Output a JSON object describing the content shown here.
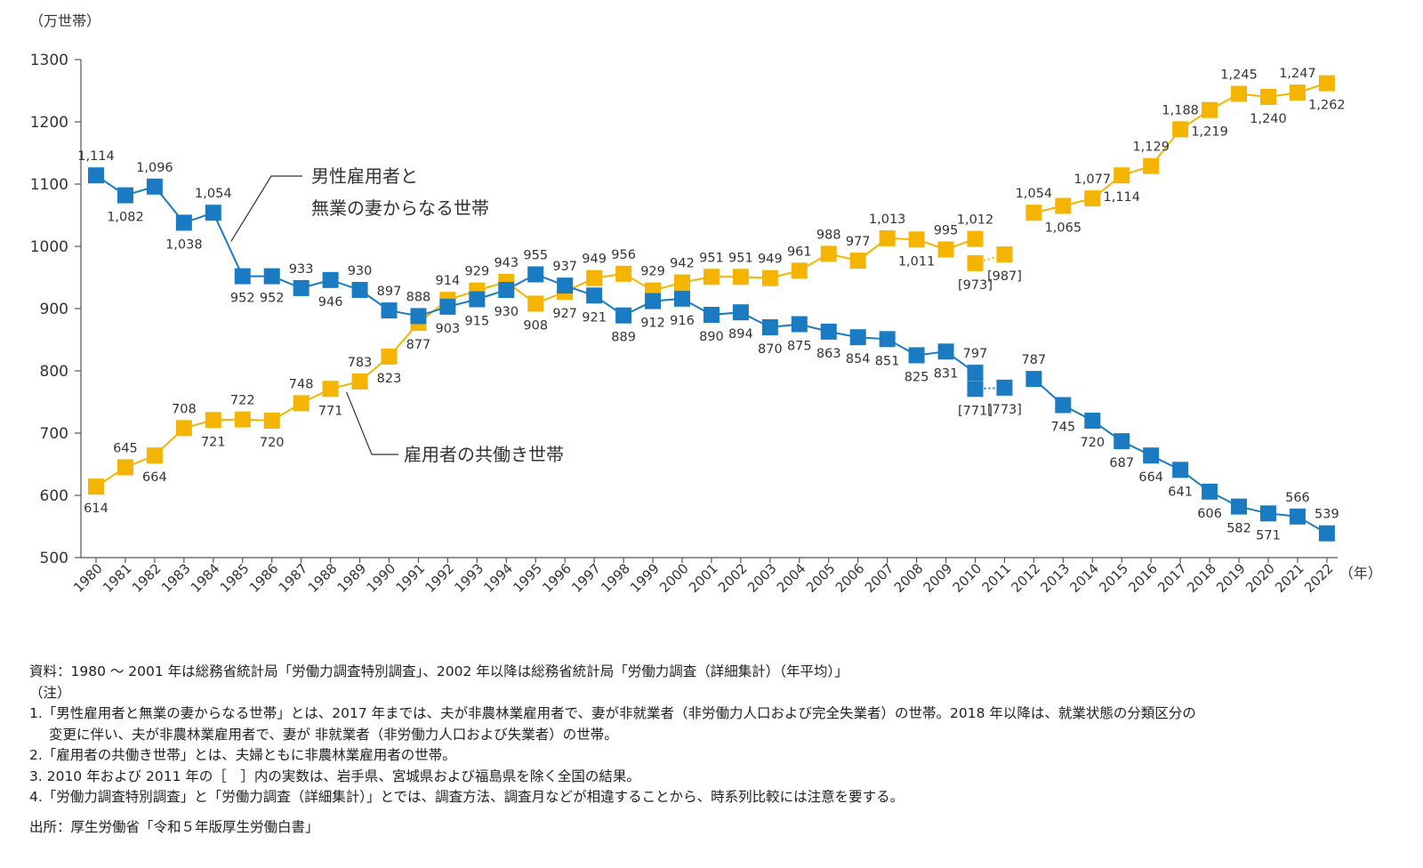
{
  "chart_data": {
    "type": "line",
    "y_unit_label": "（万世帯）",
    "x_unit_label": "（年）",
    "ylim": [
      500,
      1300
    ],
    "yticks": [
      "500",
      "600",
      "700",
      "800",
      "900",
      "1000",
      "1100",
      "1200",
      "1300"
    ],
    "categories": [
      "1980",
      "1981",
      "1982",
      "1983",
      "1984",
      "1985",
      "1986",
      "1987",
      "1988",
      "1989",
      "1990",
      "1991",
      "1992",
      "1993",
      "1994",
      "1995",
      "1996",
      "1997",
      "1998",
      "1999",
      "2000",
      "2001",
      "2002",
      "2003",
      "2004",
      "2005",
      "2006",
      "2007",
      "2008",
      "2009",
      "2010",
      "2011",
      "2012",
      "2013",
      "2014",
      "2015",
      "2016",
      "2017",
      "2018",
      "2019",
      "2020",
      "2021",
      "2022"
    ],
    "series": [
      {
        "name": "男性雇用者と無業の妻からなる世帯",
        "label_lines": [
          "男性雇用者と",
          "無業の妻からなる世帯"
        ],
        "color": "#1a7ac2",
        "values": [
          1114,
          1082,
          1096,
          1038,
          1054,
          952,
          952,
          933,
          946,
          930,
          897,
          888,
          903,
          915,
          930,
          955,
          937,
          921,
          889,
          912,
          916,
          890,
          894,
          870,
          875,
          863,
          854,
          851,
          825,
          831,
          797,
          null,
          787,
          745,
          720,
          687,
          664,
          641,
          606,
          582,
          571,
          566,
          539
        ],
        "labels": [
          "1,114",
          "1,082",
          "1,096",
          "1,038",
          "1,054",
          "952",
          "952",
          "933",
          "946",
          "930",
          "897",
          "888",
          "903",
          "915",
          "930",
          "955",
          "937",
          "921",
          "889",
          "912",
          "916",
          "890",
          "894",
          "870",
          "875",
          "863",
          "854",
          "851",
          "825",
          "831",
          "797",
          "",
          "787",
          "745",
          "720",
          "687",
          "664",
          "641",
          "606",
          "582",
          "571",
          "566",
          "539"
        ],
        "bracket_values": [
          {
            "category": "2010",
            "value": 771,
            "label": "[771]"
          },
          {
            "category": "2011",
            "value": 773,
            "label": "[773]"
          }
        ]
      },
      {
        "name": "雇用者の共働き世帯",
        "label_lines": [
          "雇用者の共働き世帯"
        ],
        "color": "#f5b400",
        "values": [
          614,
          645,
          664,
          708,
          721,
          722,
          720,
          748,
          771,
          783,
          823,
          877,
          914,
          929,
          943,
          908,
          927,
          949,
          956,
          929,
          942,
          951,
          951,
          949,
          961,
          988,
          977,
          1013,
          1011,
          995,
          1012,
          null,
          1054,
          1065,
          1077,
          1114,
          1129,
          1188,
          1219,
          1245,
          1240,
          1247,
          1262
        ],
        "labels": [
          "614",
          "645",
          "664",
          "708",
          "721",
          "722",
          "720",
          "748",
          "771",
          "783",
          "823",
          "877",
          "914",
          "929",
          "943",
          "908",
          "927",
          "949",
          "956",
          "929",
          "942",
          "951",
          "951",
          "949",
          "961",
          "988",
          "977",
          "1,013",
          "1,011",
          "995",
          "1,012",
          "",
          "1,054",
          "1,065",
          "1,077",
          "1,114",
          "1,129",
          "1,188",
          "1,219",
          "1,245",
          "1,240",
          "1,247",
          "1,262"
        ],
        "bracket_values": [
          {
            "category": "2010",
            "value": 973,
            "label": "[973]"
          },
          {
            "category": "2011",
            "value": 987,
            "label": "[987]"
          }
        ]
      }
    ]
  },
  "notes": {
    "source_line": "資料：1980 ～ 2001 年は総務省統計局「労働力調査特別調査」、2002 年以降は総務省統計局「労働力調査（詳細集計）（年平均）」",
    "note_heading": "（注）",
    "note1a": "1.「男性雇用者と無業の妻からなる世帯」とは、2017 年までは、夫が非農林業雇用者で、妻が非就業者（非労働力人口および完全失業者）の世帯。2018 年以降は、就業状態の分類区分の",
    "note1b": "変更に伴い、夫が非農林業雇用者で、妻が 非就業者（非労働力人口および失業者）の世帯。",
    "note2": "2.「雇用者の共働き世帯」とは、夫婦ともに非農林業雇用者の世帯。",
    "note3": "3. 2010 年および 2011 年の［　］内の実数は、岩手県、宮城県および福島県を除く全国の結果。",
    "note4": "4.「労働力調査特別調査」と「労働力調査（詳細集計）」とでは、調査方法、調査月などが相違することから、時系列比較には注意を要する。",
    "citation": "出所：厚生労働省「令和５年版厚生労働白書」"
  }
}
